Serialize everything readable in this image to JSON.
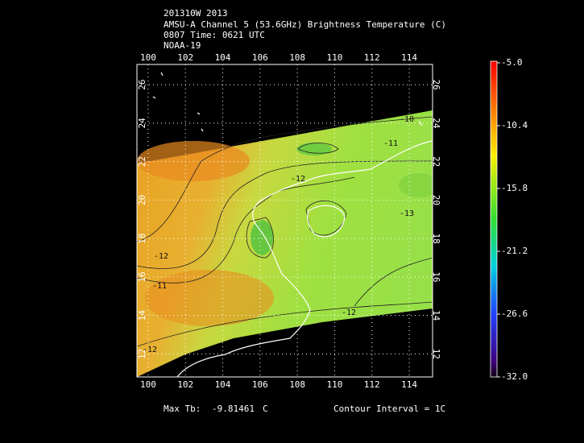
{
  "header": {
    "lines": [
      "201310W 2013",
      "AMSU-A Channel 5 (53.6GHz) Brightness Temperature (C)",
      "0807 Time: 0621 UTC",
      "NOAA-19"
    ]
  },
  "map": {
    "xlim": [
      99.4,
      115.25
    ],
    "ylim": [
      10.8,
      27.05
    ],
    "xticks": [
      100,
      102,
      104,
      106,
      108,
      110,
      112,
      114
    ],
    "yticks": [
      12,
      14,
      16,
      18,
      20,
      22,
      24,
      26
    ],
    "contour_labels": [
      {
        "value": -10,
        "label": "-10"
      },
      {
        "value": -11,
        "label": "-11"
      },
      {
        "value": -12,
        "label": "-12"
      },
      {
        "value": -12,
        "label": "-12"
      },
      {
        "value": -11,
        "label": "-11"
      },
      {
        "value": -13,
        "label": "-13"
      },
      {
        "value": -12,
        "label": "-12"
      },
      {
        "value": -12,
        "label": "-12"
      }
    ]
  },
  "colorbar": {
    "lim": [
      -32,
      -5
    ],
    "ticks": [
      {
        "value": -5,
        "label": "-5.0"
      },
      {
        "value": -10.4,
        "label": "-10.4"
      },
      {
        "value": -15.8,
        "label": "-15.8"
      },
      {
        "value": -21.2,
        "label": "-21.2"
      },
      {
        "value": -26.6,
        "label": "-26.6"
      },
      {
        "value": -32,
        "label": "-32.0"
      }
    ]
  },
  "footer": {
    "max_label": "Max Tb:",
    "max_value": "-9.81461",
    "max_unit": "C",
    "interval": "Contour Interval = 1C"
  }
}
